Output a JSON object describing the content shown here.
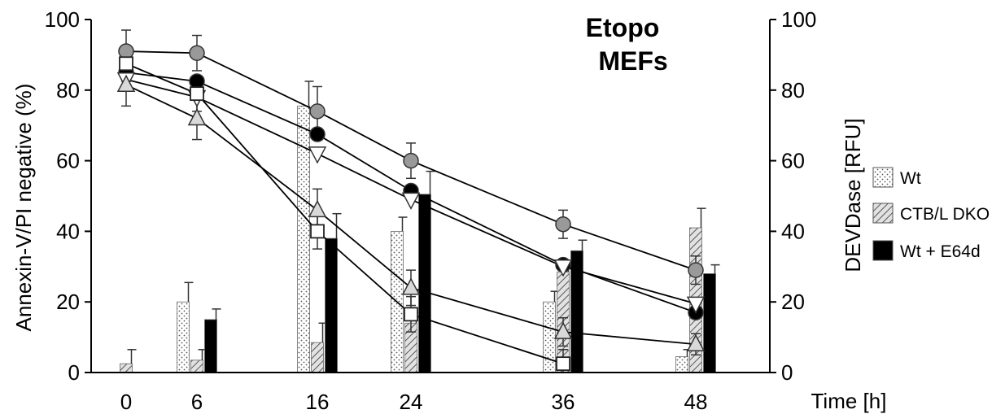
{
  "chart_data": {
    "type": "bar",
    "title": [
      "Etopo",
      "MEFs"
    ],
    "xlabel": "Time [h]",
    "ylabel_left": "Annexin-V/PI negative (%)",
    "ylabel_right": "DEVDase [RFU]",
    "categories": [
      "0",
      "6",
      "16",
      "24",
      "36",
      "48"
    ],
    "ylim_left": [
      0,
      100
    ],
    "ylim_right": [
      0,
      100
    ],
    "yticks_left": [
      "0",
      "20",
      "40",
      "60",
      "80",
      "100"
    ],
    "yticks_right": [
      "0",
      "20",
      "40",
      "60",
      "80",
      "100"
    ],
    "grid": false,
    "legend_position": "right",
    "bar_series": [
      {
        "name": "Wt",
        "pattern": "dots",
        "values": [
          0,
          20,
          75.5,
          40,
          20,
          4.5
        ],
        "errors": [
          0,
          5.5,
          7,
          4,
          3,
          2
        ]
      },
      {
        "name": "CTB/L DKO",
        "pattern": "hatch",
        "values": [
          2.5,
          3.5,
          8.5,
          14,
          28.5,
          41
        ],
        "errors": [
          4,
          3,
          5.5,
          3,
          2,
          5.5
        ]
      },
      {
        "name": "Wt + E64d",
        "pattern": "solid",
        "values": [
          0,
          15,
          38,
          50.5,
          34.5,
          28
        ],
        "errors": [
          0,
          3,
          7,
          6.5,
          3,
          2.5
        ]
      }
    ],
    "line_series": [
      {
        "marker": "circle",
        "fill": "#999999",
        "values": [
          91,
          90.5,
          74,
          60,
          42,
          29
        ],
        "errors": [
          6,
          5,
          7,
          5,
          4,
          4
        ]
      },
      {
        "marker": "circle",
        "fill": "#000000",
        "values": [
          85,
          82.5,
          67.5,
          51.5,
          30.5,
          17
        ],
        "errors": [
          0,
          0,
          0,
          0,
          0,
          0
        ]
      },
      {
        "marker": "triangle-down",
        "fill": "#ffffff",
        "values": [
          83,
          78,
          62,
          49,
          30,
          19.5
        ],
        "errors": [
          0,
          0,
          0,
          0,
          0,
          0
        ]
      },
      {
        "marker": "triangle-up",
        "fill": "#d9d9d9",
        "values": [
          81.5,
          72,
          46,
          24,
          11.5,
          8
        ],
        "errors": [
          6,
          6,
          6,
          5,
          4,
          3
        ]
      },
      {
        "marker": "square",
        "fill": "#ffffff",
        "values": [
          87.5,
          79,
          40,
          16.5,
          2.5,
          null
        ],
        "errors": [
          5,
          5,
          5,
          5,
          4,
          0
        ]
      }
    ]
  }
}
